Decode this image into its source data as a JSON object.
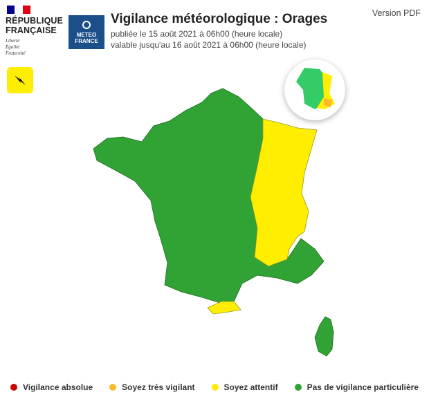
{
  "header": {
    "republique": "RÉPUBLIQUE FRANÇAISE",
    "republique_l1": "RÉPUBLIQUE",
    "republique_l2": "FRANÇAISE",
    "devise": [
      "Liberté",
      "Égalité",
      "Fraternité"
    ],
    "meteo_l1": "METEO",
    "meteo_l2": "FRANCE",
    "title": "Vigilance météorologique : Orages",
    "published": "publiée le 15 août 2021 à 06h00 (heure locale)",
    "valid": "valable jusqu'au 16 août 2021 à 06h00 (heure locale)",
    "pdf_link": "Version PDF"
  },
  "phenomenon_icon": "lightning-icon",
  "colors": {
    "red": "#cc0000",
    "orange": "#ffb82b",
    "yellow": "#ffee00",
    "green": "#31a334"
  },
  "map": {
    "yellow_zone": "eastern departments (Grand Est, Bourgogne-Franche-Comté, Rhône-Alpes) and Pyrénées-Orientales",
    "rest": "green"
  },
  "legend": [
    {
      "label": "Vigilance absolue",
      "color": "#cc0000"
    },
    {
      "label": "Soyez très vigilant",
      "color": "#ffb82b"
    },
    {
      "label": "Soyez attentif",
      "color": "#ffee00"
    },
    {
      "label": "Pas de vigilance particulière",
      "color": "#31a334"
    }
  ]
}
